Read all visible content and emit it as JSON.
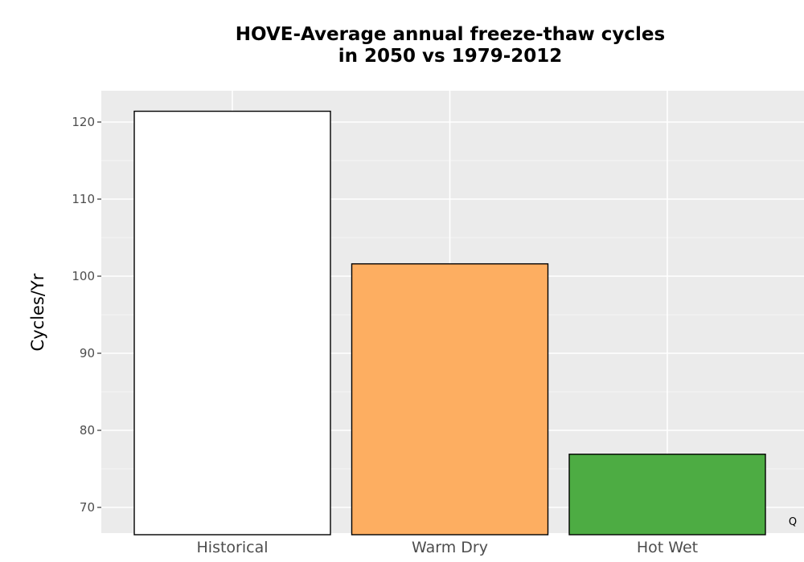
{
  "chart_data": {
    "type": "bar",
    "title_lines": [
      "HOVE-Average annual freeze-thaw cycles",
      "in 2050 vs 1979-2012"
    ],
    "xlabel": "",
    "ylabel": "Cycles/Yr",
    "categories": [
      "Historical",
      "Warm Dry",
      "Hot Wet"
    ],
    "values": [
      121.4,
      101.6,
      76.9
    ],
    "colors": [
      "#ffffff",
      "#fdae61",
      "#4dac43"
    ],
    "ylim": [
      66.6,
      124
    ],
    "yticks": [
      70,
      80,
      90,
      100,
      110,
      120
    ],
    "yminor": [
      75,
      85,
      95,
      105,
      115
    ],
    "grid": true,
    "panel_background": "#ebebeb",
    "annotation": "Q"
  }
}
